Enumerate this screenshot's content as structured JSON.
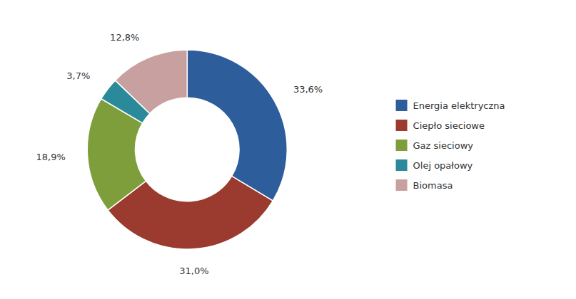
{
  "chart_data": {
    "type": "donut",
    "categories": [
      "Energia elektryczna",
      "Ciepło sieciowe",
      "Gaz sieciowy",
      "Olej opałowy",
      "Biomasa"
    ],
    "values": [
      33.6,
      31.0,
      18.9,
      3.7,
      12.8
    ],
    "value_labels": [
      "33,6%",
      "31,0%",
      "18,9%",
      "3,7%",
      "12,8%"
    ],
    "colors": [
      "#2e5d9c",
      "#9b3a2e",
      "#7d9e3a",
      "#2a8a99",
      "#c9a0a0"
    ],
    "legend": "right",
    "data_labels": true
  }
}
